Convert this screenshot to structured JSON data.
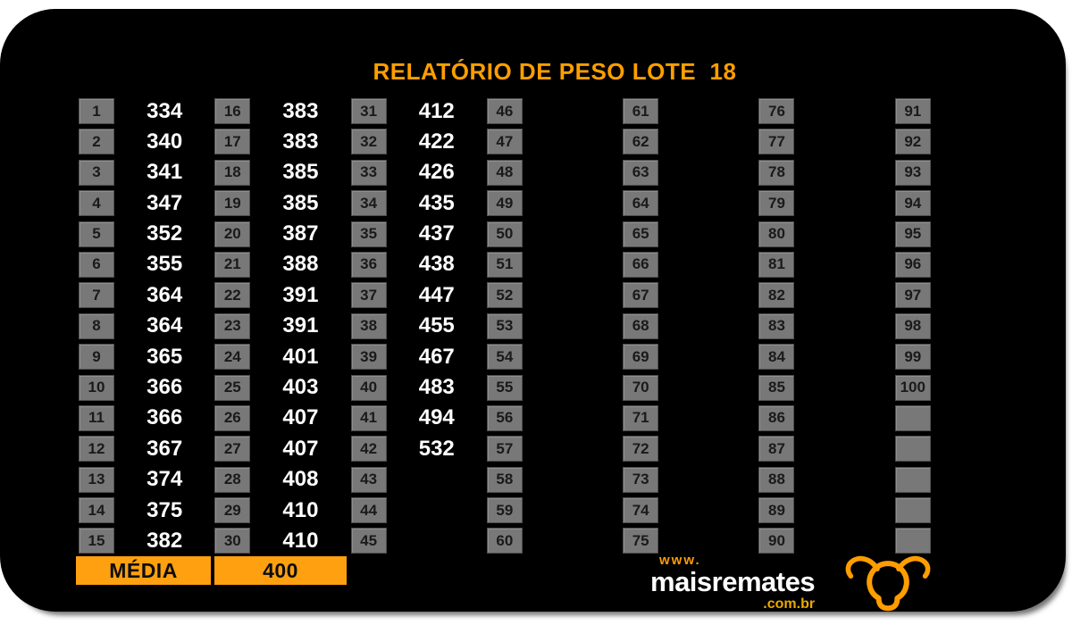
{
  "title": "RELATÓRIO DE PESO LOTE  18",
  "report": {
    "rows_per_column": 15,
    "columns": [
      {
        "indices": [
          "1",
          "2",
          "3",
          "4",
          "5",
          "6",
          "7",
          "8",
          "9",
          "10",
          "11",
          "12",
          "13",
          "14",
          "15"
        ],
        "values": [
          "334",
          "340",
          "341",
          "347",
          "352",
          "355",
          "364",
          "364",
          "365",
          "366",
          "366",
          "367",
          "374",
          "375",
          "382"
        ]
      },
      {
        "indices": [
          "16",
          "17",
          "18",
          "19",
          "20",
          "21",
          "22",
          "23",
          "24",
          "25",
          "26",
          "27",
          "28",
          "29",
          "30"
        ],
        "values": [
          "383",
          "383",
          "385",
          "385",
          "387",
          "388",
          "391",
          "391",
          "401",
          "403",
          "407",
          "407",
          "408",
          "410",
          "410"
        ]
      },
      {
        "indices": [
          "31",
          "32",
          "33",
          "34",
          "35",
          "36",
          "37",
          "38",
          "39",
          "40",
          "41",
          "42",
          "43",
          "44",
          "45"
        ],
        "values": [
          "412",
          "422",
          "426",
          "435",
          "437",
          "438",
          "447",
          "455",
          "467",
          "483",
          "494",
          "532",
          "",
          "",
          ""
        ]
      },
      {
        "indices": [
          "46",
          "47",
          "48",
          "49",
          "50",
          "51",
          "52",
          "53",
          "54",
          "55",
          "56",
          "57",
          "58",
          "59",
          "60"
        ],
        "values": [
          "",
          "",
          "",
          "",
          "",
          "",
          "",
          "",
          "",
          "",
          "",
          "",
          "",
          "",
          ""
        ]
      },
      {
        "indices": [
          "61",
          "62",
          "63",
          "64",
          "65",
          "66",
          "67",
          "68",
          "69",
          "70",
          "71",
          "72",
          "73",
          "74",
          "75"
        ],
        "values": [
          "",
          "",
          "",
          "",
          "",
          "",
          "",
          "",
          "",
          "",
          "",
          "",
          "",
          "",
          ""
        ]
      },
      {
        "indices": [
          "76",
          "77",
          "78",
          "79",
          "80",
          "81",
          "82",
          "83",
          "84",
          "85",
          "86",
          "87",
          "88",
          "89",
          "90"
        ],
        "values": [
          "",
          "",
          "",
          "",
          "",
          "",
          "",
          "",
          "",
          "",
          "",
          "",
          "",
          "",
          ""
        ]
      },
      {
        "indices": [
          "91",
          "92",
          "93",
          "94",
          "95",
          "96",
          "97",
          "98",
          "99",
          "100",
          "",
          "",
          "",
          "",
          ""
        ],
        "values": [
          "",
          "",
          "",
          "",
          "",
          "",
          "",
          "",
          "",
          "",
          "",
          "",
          "",
          "",
          ""
        ]
      }
    ]
  },
  "summary": {
    "label": "MÉDIA",
    "value": "400"
  },
  "brand": {
    "www": "www.",
    "name": "maisremates",
    "tld": ".com.br",
    "icon": "bull-head-icon"
  },
  "colors": {
    "page_bg": "#FFFFFF",
    "card_bg": "#000000",
    "accent_orange": "#FFA010",
    "title_orange": "#FF9E00",
    "logo_orange": "#FF9D00",
    "tld_orange": "#ECA900",
    "cell_bg": "#787878",
    "cell_border": "#4E4E4E",
    "index_text": "#1A1A1A",
    "value_text": "#FFFFFF"
  }
}
